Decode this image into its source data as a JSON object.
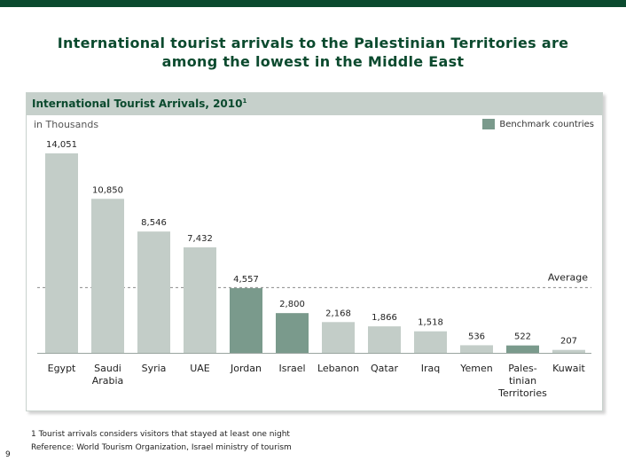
{
  "colors": {
    "bar": "#c3cdc8",
    "benchmark": "#7a9a8c",
    "average_line": "#8a8a8a",
    "title": "#0b4a2e"
  },
  "page": {
    "title_line1": "International tourist arrivals to the Palestinian Territories are",
    "title_line2": "among the lowest in the Middle East",
    "page_number": "9"
  },
  "panel": {
    "title": "International Tourist Arrivals, 2010",
    "title_sup": "1",
    "unit": "in Thousands",
    "legend_label": "Benchmark countries"
  },
  "footnote": {
    "line1": "1 Tourist arrivals considers visitors that stayed at least one night",
    "line2": "Reference: World Tourism Organization, Israel ministry of tourism"
  },
  "chart_data": {
    "type": "bar",
    "title": "International Tourist Arrivals, 2010",
    "unit": "in Thousands",
    "categories": [
      [
        "Egypt"
      ],
      [
        "Saudi",
        "Arabia"
      ],
      [
        "Syria"
      ],
      [
        "UAE"
      ],
      [
        "Jordan"
      ],
      [
        "Israel"
      ],
      [
        "Lebanon"
      ],
      [
        "Qatar"
      ],
      [
        "Iraq"
      ],
      [
        "Yemen"
      ],
      [
        "Pales-",
        "tinian",
        "Territories"
      ],
      [
        "Kuwait"
      ]
    ],
    "values": [
      14051,
      10850,
      8546,
      7432,
      4557,
      2800,
      2168,
      1866,
      1518,
      536,
      522,
      207
    ],
    "value_labels": [
      "14,051",
      "10,850",
      "8,546",
      "7,432",
      "4,557",
      "2,800",
      "2,168",
      "1,866",
      "1,518",
      "536",
      "522",
      "207"
    ],
    "highlight": [
      "normal",
      "normal",
      "normal",
      "normal",
      "benchmark",
      "benchmark",
      "normal",
      "normal",
      "normal",
      "normal",
      "benchmark",
      "normal"
    ],
    "reference_line": {
      "label": "Average",
      "value": 4600
    },
    "ylim": [
      0,
      14051
    ],
    "grid": false
  }
}
